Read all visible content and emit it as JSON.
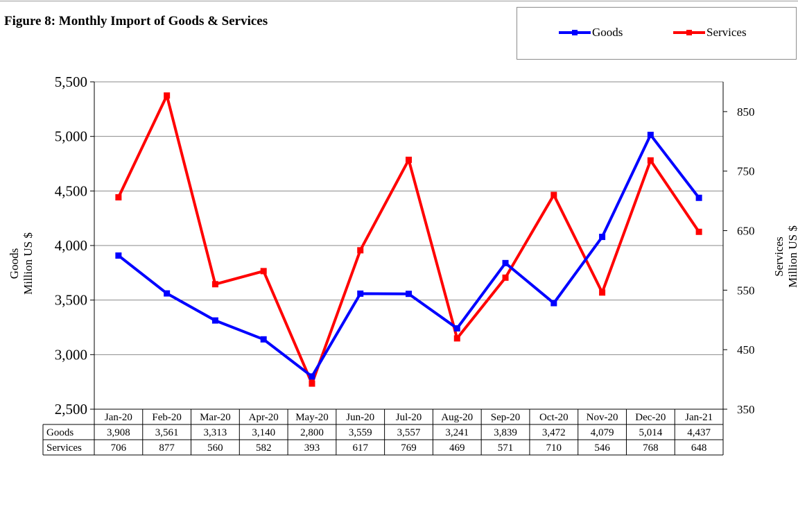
{
  "title": "Figure 8: Monthly Import of Goods & Services",
  "legend": [
    {
      "label": "Goods",
      "color": "#0000ff"
    },
    {
      "label": "Services",
      "color": "#ff0000"
    }
  ],
  "left_axis_title": [
    "Goods",
    "Million US $"
  ],
  "right_axis_title": [
    "Services",
    "Million US $"
  ],
  "chart_data": {
    "type": "line",
    "categories": [
      "Jan-20",
      "Feb-20",
      "Mar-20",
      "Apr-20",
      "May-20",
      "Jun-20",
      "Jul-20",
      "Aug-20",
      "Sep-20",
      "Oct-20",
      "Nov-20",
      "Dec-20",
      "Jan-21"
    ],
    "series": [
      {
        "name": "Goods",
        "axis": "left",
        "color": "#0000ff",
        "values": [
          3908,
          3561,
          3313,
          3140,
          2800,
          3559,
          3557,
          3241,
          3839,
          3472,
          4079,
          5014,
          4437
        ],
        "labels": [
          "3,908",
          "3,561",
          "3,313",
          "3,140",
          "2,800",
          "3,559",
          "3,557",
          "3,241",
          "3,839",
          "3,472",
          "4,079",
          "5,014",
          "4,437"
        ]
      },
      {
        "name": "Services",
        "axis": "right",
        "color": "#ff0000",
        "values": [
          706,
          877,
          560,
          582,
          393,
          617,
          769,
          469,
          571,
          710,
          546,
          768,
          648
        ],
        "labels": [
          "706",
          "877",
          "560",
          "582",
          "393",
          "617",
          "769",
          "469",
          "571",
          "710",
          "546",
          "768",
          "648"
        ]
      }
    ],
    "left_axis": {
      "range": [
        2500,
        5500
      ],
      "ticks": [
        2500,
        3000,
        3500,
        4000,
        4500,
        5000,
        5500
      ],
      "tick_labels": [
        "2,500",
        "3,000",
        "3,500",
        "4,000",
        "4,500",
        "5,000",
        "5,500"
      ]
    },
    "right_axis": {
      "range": [
        350,
        900
      ],
      "ticks": [
        350,
        450,
        550,
        650,
        750,
        850
      ],
      "tick_labels": [
        "350",
        "450",
        "550",
        "650",
        "750",
        "850"
      ]
    },
    "grid": true,
    "data_table": {
      "row_labels": [
        "Goods",
        "Services"
      ]
    }
  }
}
